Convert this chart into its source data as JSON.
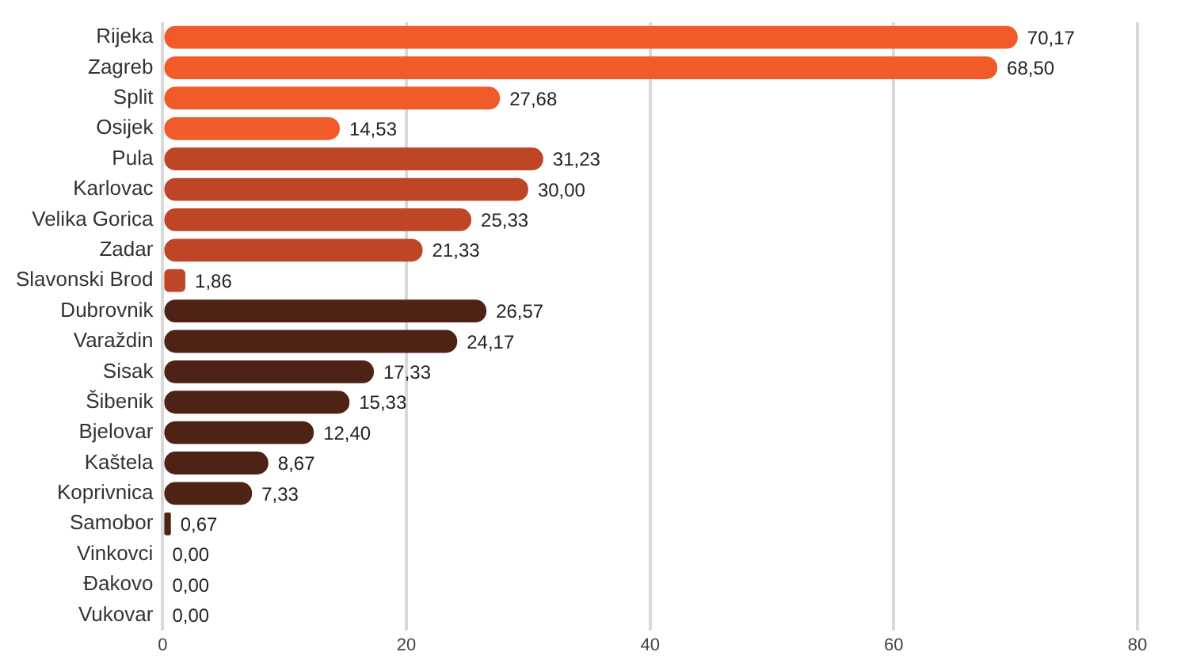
{
  "chart_data": {
    "type": "bar",
    "orientation": "horizontal",
    "categories": [
      "Rijeka",
      "Zagreb",
      "Split",
      "Osijek",
      "Pula",
      "Karlovac",
      "Velika Gorica",
      "Zadar",
      "Slavonski Brod",
      "Dubrovnik",
      "Varaždin",
      "Sisak",
      "Šibenik",
      "Bjelovar",
      "Kaštela",
      "Koprivnica",
      "Samobor",
      "Vinkovci",
      "Đakovo",
      "Vukovar"
    ],
    "values": [
      70.17,
      68.5,
      27.68,
      14.53,
      31.23,
      30.0,
      25.33,
      21.33,
      1.86,
      26.57,
      24.17,
      17.33,
      15.33,
      12.4,
      8.67,
      7.33,
      0.67,
      0,
      0,
      0
    ],
    "value_labels": [
      "70,17",
      "68,50",
      "27,68",
      "14,53",
      "31,23",
      "30,00",
      "25,33",
      "21,33",
      "1,86",
      "26,57",
      "24,17",
      "17,33",
      "15,33",
      "12,40",
      "8,67",
      "7,33",
      "0,67",
      "0,00",
      "0,00",
      "0,00"
    ],
    "colors": [
      "#f15a29",
      "#f15a29",
      "#f15a29",
      "#f15a29",
      "#bf4527",
      "#bf4527",
      "#bf4527",
      "#bf4527",
      "#bf4527",
      "#4f2216",
      "#4f2216",
      "#4f2216",
      "#4f2216",
      "#4f2216",
      "#4f2216",
      "#4f2216",
      "#4f2216",
      "#4f2216",
      "#4f2216",
      "#4f2216"
    ],
    "xlim": [
      0,
      80
    ],
    "xticks": [
      0,
      20,
      40,
      60,
      80
    ],
    "grid": "x",
    "legend": false
  }
}
